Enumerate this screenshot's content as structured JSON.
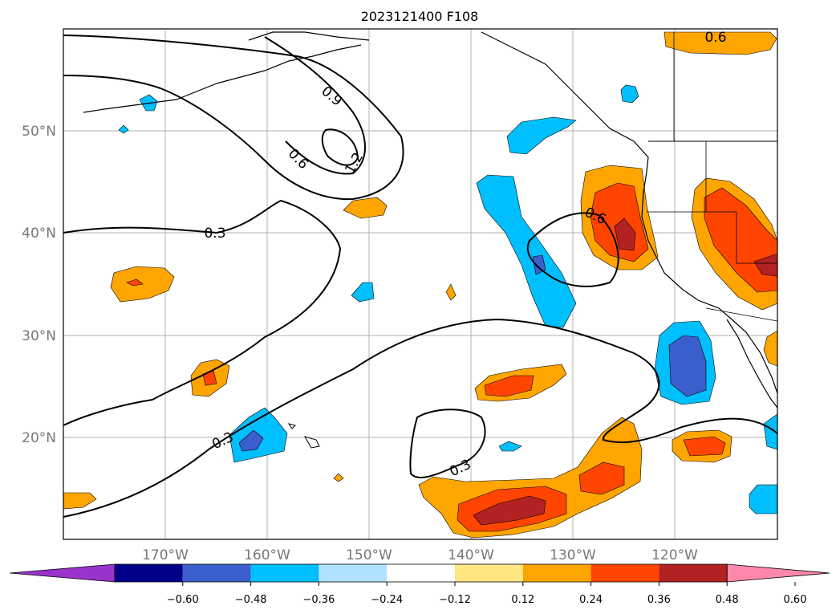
{
  "title": "2023121400 F108",
  "lat_labels": [
    "50°N",
    "40°N",
    "30°N",
    "20°N"
  ],
  "lon_labels": [
    "170°W",
    "160°W",
    "150°W",
    "140°W",
    "130°W",
    "120°W"
  ],
  "contour_labels": [
    "0.6",
    "0.9",
    "1.2",
    "0.6",
    "0.3",
    "0.6",
    "0.3",
    "0.3"
  ],
  "colorbar": {
    "ticks": [
      "−0.60",
      "−0.48",
      "−0.36",
      "−0.24",
      "−0.12",
      "0.12",
      "0.24",
      "0.36",
      "0.48",
      "0.60"
    ],
    "colors": [
      "#9933cc",
      "#00008b",
      "#3a5fcd",
      "#00bfff",
      "#b0e2ff",
      "#ffffff",
      "#ffe680",
      "#ffa500",
      "#ff4500",
      "#b22222",
      "#ff88aa"
    ]
  },
  "fill_colors": {
    "light_yellow": "#ffe680",
    "orange": "#ffa500",
    "red_orange": "#ff4500",
    "dark_red": "#b22222",
    "light_blue": "#b0e2ff",
    "cyan": "#00bfff",
    "royal_blue": "#3a5fcd"
  }
}
